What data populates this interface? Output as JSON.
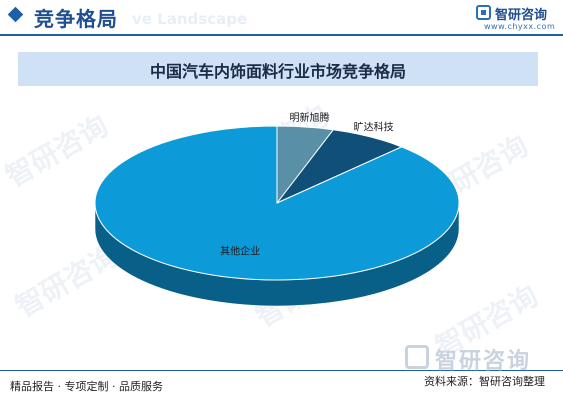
{
  "header": {
    "title": "竞争格局",
    "subtitle_en": "ve Landscape",
    "logo_name": "智研咨询",
    "logo_url": "www.chyxx.com",
    "accent_color": "#1f5fa8"
  },
  "chart_data": {
    "type": "pie",
    "title": "中国汽车内饰面料行业市场竞争格局",
    "slices": [
      {
        "label": "明新旭腾",
        "value": 5,
        "color": "#5a8fa8"
      },
      {
        "label": "旷达科技",
        "value": 7,
        "color": "#0f4f78"
      },
      {
        "label": "其他企业",
        "value": 88,
        "color": "#0d9ad9"
      }
    ],
    "legend": "none",
    "style": "3d"
  },
  "watermark": {
    "text": "智研咨询"
  },
  "footer": {
    "left": "精品报告 · 专项定制 · 品质服务",
    "right": "资料来源：智研咨询整理",
    "logo_text": "智研咨询"
  }
}
